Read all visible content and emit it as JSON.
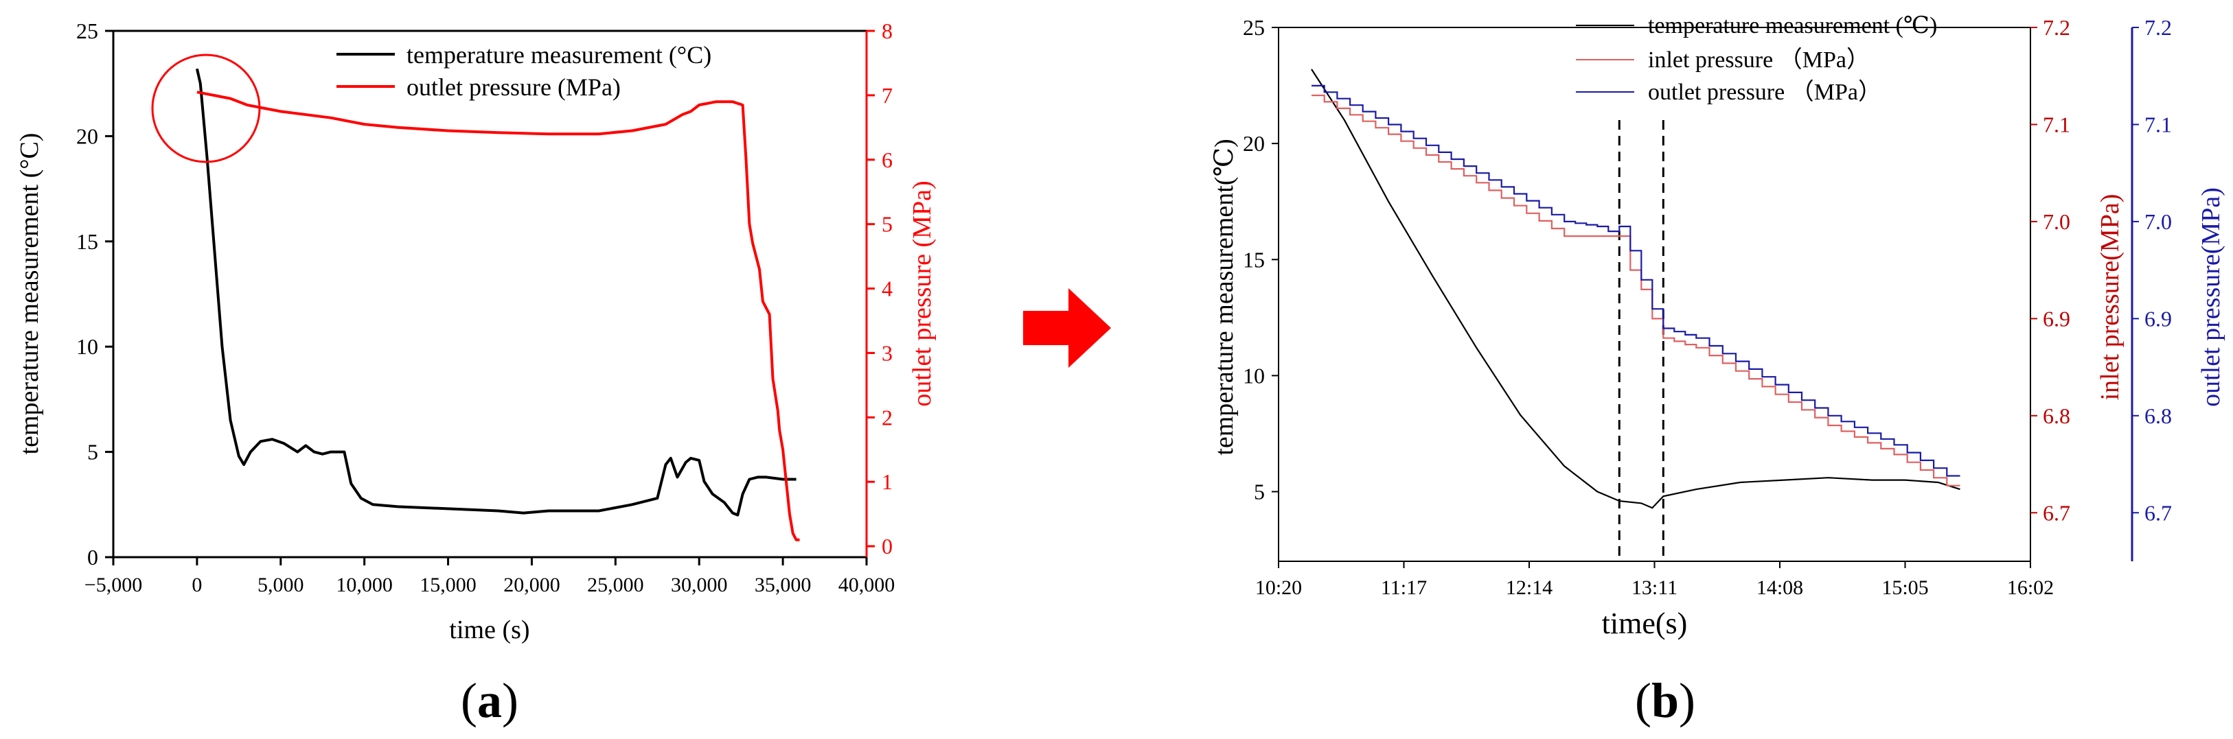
{
  "figure": {
    "panel_a_label": "a",
    "panel_b_label": "b",
    "arrow_color": "#ff0000"
  },
  "colors": {
    "black": "#000000",
    "red": "#ff0000",
    "blue": "#1a1aa6",
    "dark_red": "#c00000"
  },
  "chart_data": [
    {
      "id": "a",
      "type": "line",
      "title": "",
      "xlabel": "time (s)",
      "ylabel_left": "temperature measurement (°C)",
      "ylabel_right": "outlet pressure (MPa)",
      "xlim": [
        -5000,
        40000
      ],
      "ylim_left": [
        0,
        25
      ],
      "ylim_right": [
        -0.17,
        8
      ],
      "x_ticks": [
        -5000,
        0,
        5000,
        10000,
        15000,
        20000,
        25000,
        30000,
        35000,
        40000
      ],
      "x_tick_labels": [
        "−5,000",
        "0",
        "5,000",
        "10,000",
        "15,000",
        "20,000",
        "25,000",
        "30,000",
        "35,000",
        "40,000"
      ],
      "y_left_ticks": [
        0,
        5,
        10,
        15,
        20,
        25
      ],
      "y_right_ticks": [
        0,
        1,
        2,
        3,
        4,
        5,
        6,
        7,
        8
      ],
      "legend_position": "top-right",
      "annotation": "circle around initial drop near t = 0",
      "series": [
        {
          "name": "temperature measurement (°C)",
          "axis": "left",
          "color": "#000000",
          "x": [
            0,
            200,
            600,
            1000,
            1500,
            2000,
            2500,
            2800,
            3200,
            3800,
            4500,
            5200,
            6000,
            6500,
            7000,
            7500,
            8000,
            8800,
            9200,
            9800,
            10500,
            12000,
            15000,
            18000,
            19500,
            21000,
            24000,
            26000,
            27500,
            28000,
            28300,
            28700,
            29200,
            29500,
            30000,
            30300,
            30800,
            31500,
            32000,
            32300,
            32600,
            33000,
            33500,
            34000,
            35000,
            35500,
            35800
          ],
          "y": [
            23.2,
            22.5,
            19,
            15,
            10,
            6.5,
            4.8,
            4.4,
            5.0,
            5.5,
            5.6,
            5.4,
            5.0,
            5.3,
            5.0,
            4.9,
            5.0,
            5.0,
            3.5,
            2.8,
            2.5,
            2.4,
            2.3,
            2.2,
            2.1,
            2.2,
            2.2,
            2.5,
            2.8,
            4.4,
            4.7,
            3.8,
            4.5,
            4.7,
            4.6,
            3.6,
            3.0,
            2.6,
            2.1,
            2.0,
            3.0,
            3.7,
            3.8,
            3.8,
            3.7,
            3.7,
            3.7
          ]
        },
        {
          "name": "outlet pressure (MPa)",
          "axis": "right",
          "color": "#ff0000",
          "x": [
            0,
            1000,
            2000,
            3000,
            5000,
            8000,
            10000,
            12000,
            15000,
            18000,
            21000,
            24000,
            26000,
            28000,
            29000,
            29500,
            30000,
            31000,
            32000,
            32600,
            32800,
            33000,
            33200,
            33600,
            33800,
            34200,
            34400,
            34700,
            34800,
            35000,
            35200,
            35400,
            35600,
            35800,
            36000
          ],
          "y": [
            7.05,
            7.0,
            6.95,
            6.85,
            6.75,
            6.65,
            6.55,
            6.5,
            6.45,
            6.42,
            6.4,
            6.4,
            6.45,
            6.55,
            6.7,
            6.75,
            6.85,
            6.9,
            6.9,
            6.85,
            6.0,
            5.0,
            4.7,
            4.3,
            3.8,
            3.6,
            2.6,
            2.1,
            1.8,
            1.5,
            1.0,
            0.5,
            0.2,
            0.1,
            0.1
          ]
        }
      ]
    },
    {
      "id": "b",
      "type": "line",
      "title": "",
      "xlabel": "time(s)",
      "ylabel_left": "temperature measurement(℃)",
      "ylabel_right_1": "inlet pressure(MPa)",
      "ylabel_right_2": "outlet pressure(MPa)",
      "x_unit": "minutes since 10:20",
      "xlim": [
        0,
        342
      ],
      "ylim_left": [
        2,
        25
      ],
      "ylim_right": [
        6.65,
        7.2
      ],
      "x_ticks": [
        0,
        57,
        114,
        171,
        228,
        285,
        342
      ],
      "x_tick_labels": [
        "10:20",
        "11:17",
        "12:14",
        "13:11",
        "14:08",
        "15:05",
        "16:02"
      ],
      "y_left_ticks": [
        5,
        10,
        15,
        20,
        25
      ],
      "y_right_ticks": [
        6.7,
        6.8,
        6.9,
        7.0,
        7.1,
        7.2
      ],
      "vlines": [
        155,
        175
      ],
      "legend_position": "top-right",
      "series": [
        {
          "name": "temperature measurement (℃)",
          "axis": "left",
          "color": "#000000",
          "x": [
            15,
            30,
            50,
            70,
            90,
            110,
            130,
            145,
            155,
            165,
            170,
            175,
            190,
            210,
            230,
            250,
            270,
            285,
            300,
            310
          ],
          "y": [
            23.2,
            21,
            17.5,
            14.3,
            11.2,
            8.3,
            6.1,
            5.0,
            4.6,
            4.5,
            4.3,
            4.8,
            5.1,
            5.4,
            5.5,
            5.6,
            5.5,
            5.5,
            5.4,
            5.1
          ]
        },
        {
          "name": "inlet pressure （MPa）",
          "axis": "right",
          "color": "#e06060",
          "x": [
            15,
            50,
            90,
            130,
            155,
            160,
            165,
            170,
            175,
            190,
            220,
            250,
            280,
            310
          ],
          "y": [
            7.13,
            7.09,
            7.04,
            6.985,
            6.985,
            6.95,
            6.93,
            6.9,
            6.88,
            6.87,
            6.83,
            6.79,
            6.76,
            6.72
          ]
        },
        {
          "name": "outlet pressure （MPa）",
          "axis": "right",
          "color": "#1a1aa6",
          "x": [
            15,
            50,
            90,
            130,
            145,
            150,
            155,
            160,
            165,
            170,
            175,
            190,
            220,
            250,
            280,
            310
          ],
          "y": [
            7.14,
            7.1,
            7.05,
            7.0,
            6.995,
            6.99,
            6.995,
            6.97,
            6.94,
            6.91,
            6.89,
            6.88,
            6.84,
            6.8,
            6.77,
            6.73
          ]
        }
      ]
    }
  ]
}
